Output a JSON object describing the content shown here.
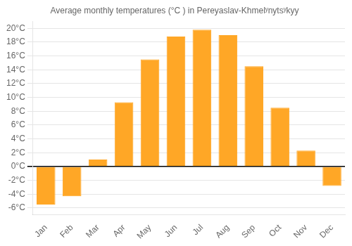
{
  "chart_data": {
    "type": "bar",
    "title": "Average monthly temperatures (°C ) in Pereyaslav-Khmelʸnytsʸkyy",
    "categories": [
      "Jan",
      "Feb",
      "Mar",
      "Apr",
      "May",
      "Jun",
      "Jul",
      "Aug",
      "Sep",
      "Oct",
      "Nov",
      "Dec"
    ],
    "values": [
      -5.5,
      -4.3,
      1.0,
      9.3,
      15.5,
      18.8,
      19.8,
      19.0,
      14.5,
      8.5,
      2.3,
      -2.8
    ],
    "color": "#FFA726",
    "ylim": [
      -7,
      21
    ],
    "yticks": [
      {
        "value": -6,
        "label": "-6°C"
      },
      {
        "value": -4,
        "label": "-4°C"
      },
      {
        "value": -2,
        "label": "-2°C"
      },
      {
        "value": 0,
        "label": "0°C"
      },
      {
        "value": 2,
        "label": "2°C"
      },
      {
        "value": 4,
        "label": "4°C"
      },
      {
        "value": 6,
        "label": "6°C"
      },
      {
        "value": 8,
        "label": "8°C"
      },
      {
        "value": 10,
        "label": "10°C"
      },
      {
        "value": 12,
        "label": "12°C"
      },
      {
        "value": 14,
        "label": "14°C"
      },
      {
        "value": 16,
        "label": "16°C"
      },
      {
        "value": 18,
        "label": "18°C"
      },
      {
        "value": 20,
        "label": "20°C"
      }
    ],
    "grid": true
  }
}
